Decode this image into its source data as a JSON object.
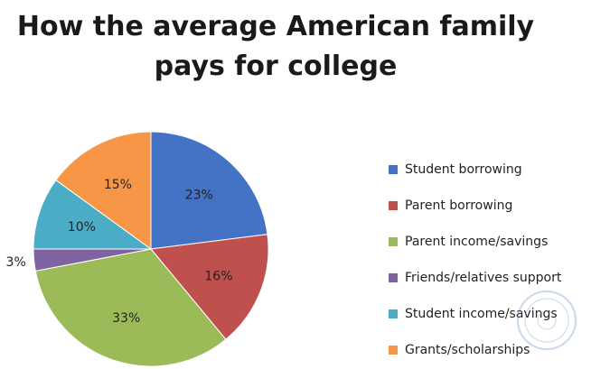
{
  "chart_data": {
    "type": "pie",
    "title_lines": [
      "How the average American family",
      "pays for college"
    ],
    "categories": [
      "Student borrowing",
      "Parent borrowing",
      "Parent income/savings",
      "Friends/relatives support",
      "Student income/savings",
      "Grants/scholarships"
    ],
    "values": [
      23,
      16,
      33,
      3,
      10,
      15
    ],
    "data_labels": [
      "23%",
      "16%",
      "33%",
      "3%",
      "10%",
      "15%"
    ],
    "colors": [
      "#4472C4",
      "#C0504D",
      "#9BBB59",
      "#8064A2",
      "#4BACC6",
      "#F79646"
    ],
    "start_angle_deg": 0,
    "direction": "clockwise",
    "legend_position": "right"
  }
}
